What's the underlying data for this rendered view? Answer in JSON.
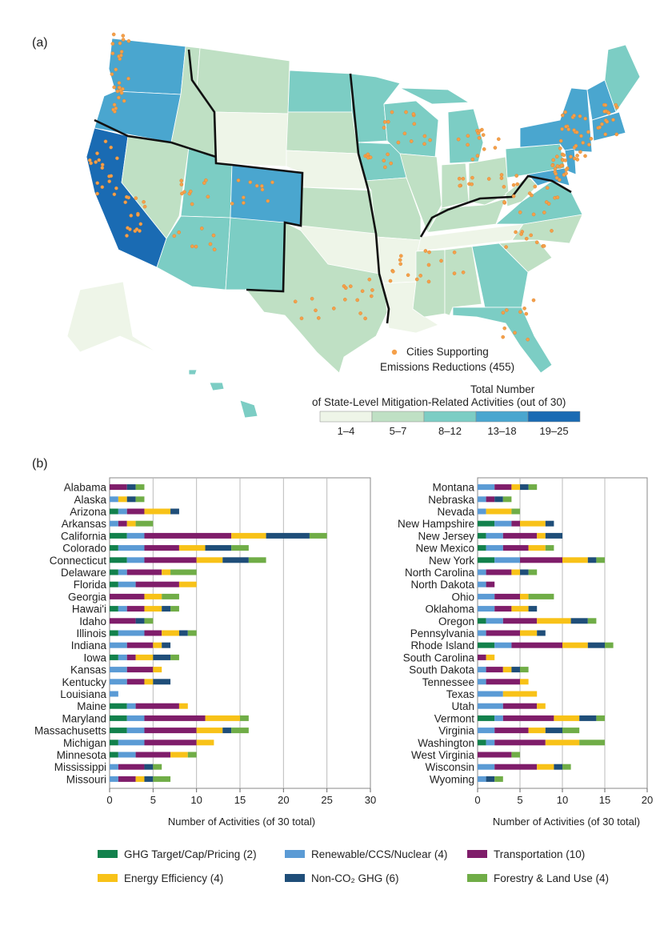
{
  "panel_a": {
    "label": "(a)",
    "cities_legend": "Cities Supporting",
    "cities_legend_2": "Emissions Reductions (455)",
    "scale_title_1": "Total Number",
    "scale_title_2": "of State-Level Mitigation-Related Activities (out of 30)",
    "scale_labels": [
      "1–4",
      "5–7",
      "8–12",
      "13–18",
      "19–25"
    ],
    "scale_colors": [
      "#eef5e8",
      "#bfe0c4",
      "#7ccdc4",
      "#4aa6cf",
      "#1a6bb3"
    ],
    "city_color": "#f5a04a",
    "ocean_color": "#dff1f7"
  },
  "panel_b": {
    "label": "(b)",
    "xlabel": "Number of Activities (of 30 total)",
    "legend": [
      {
        "name": "GHG Target/Cap/Pricing (2)",
        "color": "#12814c"
      },
      {
        "name": "Renewable/CCS/Nuclear (4)",
        "color": "#5b9bd5"
      },
      {
        "name": "Transportation (10)",
        "color": "#7f1d6a"
      },
      {
        "name": "Energy Efficiency (4)",
        "color": "#f8c218"
      },
      {
        "name": "Non-CO₂ GHG (6)",
        "color": "#1f4e79"
      },
      {
        "name": "Forestry & Land Use (4)",
        "color": "#70ad47"
      }
    ]
  },
  "chart_data": [
    {
      "type": "bar",
      "orientation": "horizontal",
      "stacked": true,
      "xlabel": "Number of Activities (of 30 total)",
      "xlim": [
        0,
        30
      ],
      "xticks": [
        0,
        5,
        10,
        15,
        20,
        25,
        30
      ],
      "grid": true,
      "series_order": [
        "GHG Target/Cap/Pricing (2)",
        "Renewable/CCS/Nuclear (4)",
        "Transportation (10)",
        "Energy Efficiency (4)",
        "Non-CO₂ GHG (6)",
        "Forestry & Land Use (4)"
      ],
      "categories": [
        "Alabama",
        "Alaska",
        "Arizona",
        "Arkansas",
        "California",
        "Colorado",
        "Connecticut",
        "Delaware",
        "Florida",
        "Georgia",
        "Hawai'i",
        "Idaho",
        "Illinois",
        "Indiana",
        "Iowa",
        "Kansas",
        "Kentucky",
        "Louisiana",
        "Maine",
        "Maryland",
        "Massachusetts",
        "Michigan",
        "Minnesota",
        "Mississippi",
        "Missouri"
      ],
      "values": [
        [
          0,
          0,
          2,
          0,
          1,
          1
        ],
        [
          0,
          1,
          0,
          1,
          1,
          1
        ],
        [
          1,
          1,
          2,
          3,
          1,
          0
        ],
        [
          0,
          1,
          1,
          1,
          0,
          2
        ],
        [
          2,
          2,
          10,
          4,
          5,
          2
        ],
        [
          1,
          3,
          4,
          3,
          3,
          2
        ],
        [
          2,
          2,
          6,
          3,
          3,
          2
        ],
        [
          1,
          1,
          4,
          1,
          0,
          3
        ],
        [
          1,
          2,
          5,
          2,
          0,
          0
        ],
        [
          0,
          0,
          4,
          2,
          0,
          2
        ],
        [
          1,
          1,
          2,
          2,
          1,
          1
        ],
        [
          0,
          0,
          3,
          0,
          1,
          1
        ],
        [
          1,
          3,
          2,
          2,
          1,
          1
        ],
        [
          0,
          2,
          3,
          1,
          1,
          0
        ],
        [
          1,
          1,
          1,
          2,
          2,
          1
        ],
        [
          0,
          2,
          3,
          1,
          0,
          0
        ],
        [
          0,
          2,
          2,
          1,
          2,
          0
        ],
        [
          0,
          1,
          0,
          0,
          0,
          0
        ],
        [
          2,
          1,
          5,
          1,
          0,
          0
        ],
        [
          2,
          2,
          7,
          4,
          0,
          1
        ],
        [
          2,
          2,
          6,
          3,
          1,
          2
        ],
        [
          1,
          3,
          6,
          2,
          0,
          0
        ],
        [
          1,
          2,
          4,
          2,
          0,
          1
        ],
        [
          0,
          1,
          3,
          0,
          1,
          1
        ],
        [
          0,
          1,
          2,
          1,
          1,
          2
        ]
      ]
    },
    {
      "type": "bar",
      "orientation": "horizontal",
      "stacked": true,
      "xlabel": "Number of Activities (of 30 total)",
      "xlim": [
        0,
        20
      ],
      "xticks": [
        0,
        5,
        10,
        15,
        20
      ],
      "grid": true,
      "series_order": [
        "GHG Target/Cap/Pricing (2)",
        "Renewable/CCS/Nuclear (4)",
        "Transportation (10)",
        "Energy Efficiency (4)",
        "Non-CO₂ GHG (6)",
        "Forestry & Land Use (4)"
      ],
      "categories": [
        "Montana",
        "Nebraska",
        "Nevada",
        "New Hampshire",
        "New Jersey",
        "New Mexico",
        "New York",
        "North Carolina",
        "North Dakota",
        "Ohio",
        "Oklahoma",
        "Oregon",
        "Pennsylvania",
        "Rhode Island",
        "South Carolina",
        "South Dakota",
        "Tennessee",
        "Texas",
        "Utah",
        "Vermont",
        "Virginia",
        "Washington",
        "West Virginia",
        "Wisconsin",
        "Wyoming"
      ],
      "values": [
        [
          0,
          2,
          2,
          1,
          1,
          1
        ],
        [
          0,
          1,
          1,
          0,
          1,
          1
        ],
        [
          0,
          1,
          0,
          3,
          0,
          1
        ],
        [
          2,
          2,
          1,
          3,
          1,
          0
        ],
        [
          1,
          2,
          4,
          1,
          2,
          0
        ],
        [
          1,
          2,
          3,
          2,
          0,
          1
        ],
        [
          2,
          3,
          5,
          3,
          1,
          1
        ],
        [
          0,
          1,
          3,
          1,
          1,
          1
        ],
        [
          0,
          1,
          1,
          0,
          0,
          0
        ],
        [
          0,
          2,
          3,
          1,
          0,
          3
        ],
        [
          0,
          2,
          2,
          2,
          1,
          0
        ],
        [
          1,
          2,
          4,
          4,
          2,
          1
        ],
        [
          0,
          1,
          4,
          2,
          1,
          0
        ],
        [
          2,
          2,
          6,
          3,
          2,
          1
        ],
        [
          0,
          0,
          1,
          1,
          0,
          0
        ],
        [
          0,
          1,
          2,
          1,
          1,
          1
        ],
        [
          0,
          1,
          4,
          1,
          0,
          0
        ],
        [
          0,
          3,
          0,
          4,
          0,
          0
        ],
        [
          0,
          3,
          4,
          1,
          0,
          0
        ],
        [
          2,
          1,
          6,
          3,
          2,
          1
        ],
        [
          0,
          2,
          4,
          2,
          2,
          2
        ],
        [
          1,
          1,
          6,
          4,
          0,
          3
        ],
        [
          0,
          0,
          4,
          0,
          0,
          1
        ],
        [
          0,
          2,
          5,
          2,
          1,
          1
        ],
        [
          0,
          1,
          0,
          0,
          1,
          1
        ]
      ]
    }
  ]
}
